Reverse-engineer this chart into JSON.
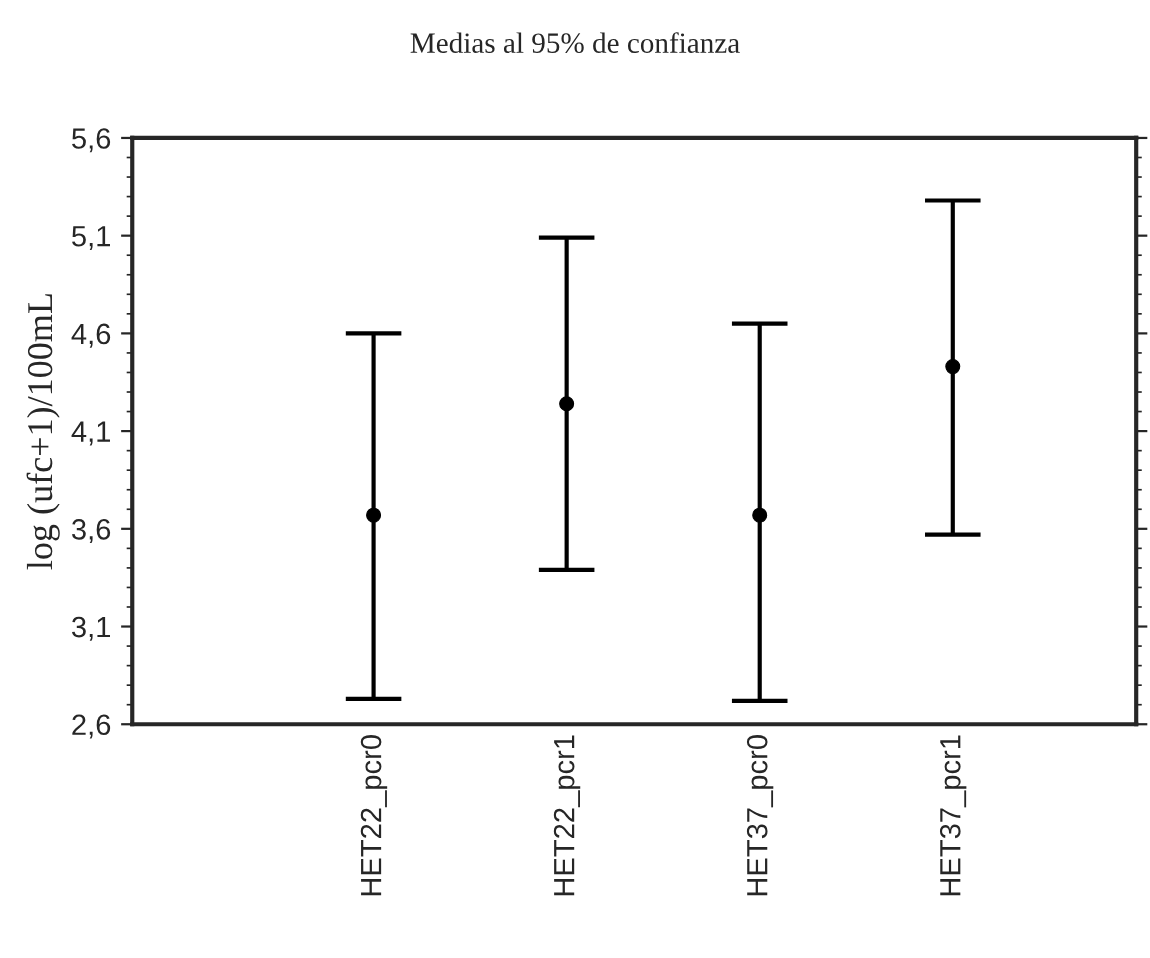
{
  "chart_data": {
    "type": "scatter",
    "title": "Medias al 95% de confianza",
    "ylabel": "log (ufc+1)/100mL",
    "categories": [
      "HET22_pcr0",
      "HET22_pcr1",
      "HET37_pcr0",
      "HET37_pcr1"
    ],
    "values": [
      3.67,
      4.24,
      3.67,
      4.43
    ],
    "errors": [
      [
        2.73,
        4.6
      ],
      [
        3.39,
        5.09
      ],
      [
        2.72,
        4.65
      ],
      [
        3.57,
        5.28
      ]
    ],
    "color": "#000000",
    "marker": "circle",
    "ylim": [
      2.6,
      5.6
    ],
    "yticks": [
      {
        "value": 2.6,
        "label": "2,6"
      },
      {
        "value": 3.1,
        "label": "3,1"
      },
      {
        "value": 3.6,
        "label": "3,6"
      },
      {
        "value": 4.1,
        "label": "4,1"
      },
      {
        "value": 4.6,
        "label": "4,6"
      },
      {
        "value": 5.1,
        "label": "5,1"
      },
      {
        "value": 5.6,
        "label": "5,6"
      }
    ],
    "grid": false,
    "legend": false
  }
}
